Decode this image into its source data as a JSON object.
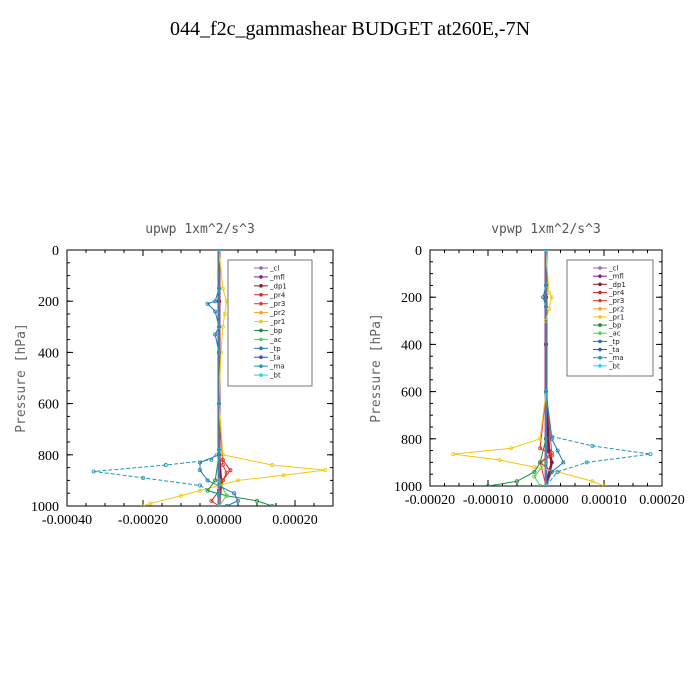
{
  "title": "044_f2c_gammashear  BUDGET at260E,-7N",
  "colors": {
    "_cl": "#9467bd",
    "_mfl": "#7b1fa2",
    "_dp1": "#8b1a3a",
    "_pr4": "#d62728",
    "_pr3": "#e8382b",
    "_pr2": "#ff9f1c",
    "_pr1": "#f2c80f",
    "_bp": "#1a8f3a",
    "_ac": "#4dd34d",
    "_tp": "#1f77b4",
    "_ta": "#3f51b5",
    "_ma": "#2096b8",
    "_bt": "#22d3ee"
  },
  "chart_data": [
    {
      "type": "line",
      "title": "upwp  1xm^2/s^3",
      "ylabel": "Pressure [hPa]",
      "xlim": [
        -0.0004,
        0.0003
      ],
      "ylim": [
        1000,
        0
      ],
      "xticks": [
        "-0.00040",
        "-0.00020",
        "0.00000",
        "0.00020"
      ],
      "yticks": [
        "0",
        "200",
        "400",
        "600",
        "800",
        "1000"
      ],
      "legend_position": "top-right",
      "series": [
        {
          "name": "_cl",
          "points": [
            [
              0,
              0
            ],
            [
              0,
              200
            ],
            [
              0,
              400
            ],
            [
              0,
              600
            ],
            [
              0,
              800
            ],
            [
              0,
              1000
            ]
          ]
        },
        {
          "name": "_mfl",
          "points": [
            [
              0,
              0
            ],
            [
              0,
              200
            ],
            [
              0,
              400
            ],
            [
              0,
              600
            ],
            [
              0,
              800
            ],
            [
              0,
              1000
            ]
          ]
        },
        {
          "name": "_dp1",
          "points": [
            [
              0,
              0
            ],
            [
              0,
              200
            ],
            [
              0,
              400
            ],
            [
              0,
              600
            ],
            [
              0,
              800
            ],
            [
              5e-06,
              900
            ],
            [
              0,
              1000
            ]
          ]
        },
        {
          "name": "_pr4",
          "points": [
            [
              0,
              0
            ],
            [
              0,
              600
            ],
            [
              1e-05,
              820
            ],
            [
              3e-05,
              860
            ],
            [
              1e-05,
              900
            ],
            [
              0,
              940
            ],
            [
              -2e-05,
              980
            ],
            [
              0,
              1000
            ]
          ]
        },
        {
          "name": "_pr3",
          "points": [
            [
              0,
              0
            ],
            [
              0,
              600
            ],
            [
              1e-05,
              840
            ],
            [
              2e-05,
              870
            ],
            [
              1e-05,
              900
            ],
            [
              0,
              1000
            ]
          ]
        },
        {
          "name": "_pr2",
          "points": [
            [
              0,
              0
            ],
            [
              0,
              600
            ],
            [
              0,
              800
            ],
            [
              0,
              1000
            ]
          ]
        },
        {
          "name": "_pr1",
          "points": [
            [
              0,
              0
            ],
            [
              1e-05,
              150
            ],
            [
              2e-05,
              200
            ],
            [
              1.5e-05,
              250
            ],
            [
              1e-05,
              300
            ],
            [
              5e-06,
              400
            ],
            [
              0,
              600
            ],
            [
              1e-05,
              800
            ],
            [
              0.00014,
              840
            ],
            [
              0.00028,
              860
            ],
            [
              0.00017,
              880
            ],
            [
              5e-05,
              900
            ],
            [
              -5e-05,
              940
            ],
            [
              -0.0001,
              960
            ],
            [
              -0.00018,
              990
            ],
            [
              -0.0002,
              1000
            ]
          ]
        },
        {
          "name": "_bp",
          "points": [
            [
              0,
              0
            ],
            [
              0,
              800
            ],
            [
              -1e-05,
              900
            ],
            [
              -3e-05,
              940
            ],
            [
              2e-05,
              960
            ],
            [
              0.0001,
              980
            ],
            [
              0.00014,
              1000
            ]
          ]
        },
        {
          "name": "_ac",
          "points": [
            [
              0,
              0
            ],
            [
              0,
              800
            ],
            [
              0,
              900
            ],
            [
              2e-05,
              960
            ],
            [
              0,
              1000
            ]
          ]
        },
        {
          "name": "_tp",
          "points": [
            [
              0,
              0
            ],
            [
              0,
              150
            ],
            [
              -1e-05,
              200
            ],
            [
              -3e-05,
              210
            ],
            [
              -1e-05,
              240
            ],
            [
              0,
              300
            ],
            [
              -1e-05,
              330
            ],
            [
              0,
              400
            ],
            [
              0,
              600
            ],
            [
              0,
              800
            ],
            [
              -5e-05,
              830
            ],
            [
              -5e-05,
              860
            ],
            [
              -3e-05,
              900
            ],
            [
              4e-05,
              950
            ],
            [
              5e-05,
              980
            ],
            [
              2e-05,
              1000
            ]
          ]
        },
        {
          "name": "_ta",
          "points": [
            [
              0,
              0
            ],
            [
              0,
              800
            ],
            [
              0,
              1000
            ]
          ]
        },
        {
          "name": "_ma",
          "points": [
            [
              0,
              0
            ],
            [
              0,
              600
            ],
            [
              0,
              780
            ],
            [
              -2e-05,
              820
            ],
            [
              -0.00014,
              840
            ],
            [
              -0.00033,
              865
            ],
            [
              -0.0002,
              890
            ],
            [
              -5e-05,
              920
            ],
            [
              0,
              960
            ],
            [
              0,
              1000
            ]
          ]
        },
        {
          "name": "_bt",
          "points": [
            [
              0,
              0
            ],
            [
              0,
              1000
            ]
          ]
        }
      ]
    },
    {
      "type": "line",
      "title": "vpwp  1xm^2/s^3",
      "ylabel": "Pressure [hPa]",
      "xlim": [
        -0.0002,
        0.0002
      ],
      "ylim": [
        1000,
        0
      ],
      "xticks": [
        "-0.00020",
        "-0.00010",
        "0.00000",
        "0.00010",
        "0.00020"
      ],
      "yticks": [
        "0",
        "200",
        "400",
        "600",
        "800",
        "1000"
      ],
      "legend_position": "top-right",
      "series": [
        {
          "name": "_cl",
          "points": [
            [
              0,
              0
            ],
            [
              0,
              200
            ],
            [
              0,
              400
            ],
            [
              0,
              600
            ],
            [
              0,
              800
            ],
            [
              0,
              1000
            ]
          ]
        },
        {
          "name": "_mfl",
          "points": [
            [
              0,
              0
            ],
            [
              0,
              200
            ],
            [
              0,
              400
            ],
            [
              0,
              600
            ],
            [
              0,
              800
            ],
            [
              0,
              1000
            ]
          ]
        },
        {
          "name": "_dp1",
          "points": [
            [
              0,
              0
            ],
            [
              0,
              600
            ],
            [
              5e-06,
              850
            ],
            [
              1e-05,
              900
            ],
            [
              0,
              1000
            ]
          ]
        },
        {
          "name": "_pr4",
          "points": [
            [
              0,
              0
            ],
            [
              0,
              600
            ],
            [
              -1e-05,
              840
            ],
            [
              1e-05,
              870
            ],
            [
              -1e-05,
              900
            ],
            [
              1e-05,
              940
            ],
            [
              0,
              1000
            ]
          ]
        },
        {
          "name": "_pr3",
          "points": [
            [
              0,
              0
            ],
            [
              0,
              600
            ],
            [
              1e-05,
              860
            ],
            [
              -1e-05,
              900
            ],
            [
              0,
              1000
            ]
          ]
        },
        {
          "name": "_pr2",
          "points": [
            [
              0,
              0
            ],
            [
              0,
              1000
            ]
          ]
        },
        {
          "name": "_pr1",
          "points": [
            [
              0,
              0
            ],
            [
              5e-06,
              180
            ],
            [
              1e-05,
              200
            ],
            [
              5e-06,
              250
            ],
            [
              0,
              300
            ],
            [
              0,
              600
            ],
            [
              -1e-05,
              800
            ],
            [
              -6e-05,
              840
            ],
            [
              -0.00016,
              865
            ],
            [
              -8e-05,
              890
            ],
            [
              -2e-05,
              920
            ],
            [
              2e-05,
              940
            ],
            [
              8e-05,
              980
            ],
            [
              0.0001,
              1000
            ]
          ]
        },
        {
          "name": "_bp",
          "points": [
            [
              0,
              0
            ],
            [
              0,
              800
            ],
            [
              -1e-05,
              900
            ],
            [
              -2e-05,
              940
            ],
            [
              -5e-05,
              980
            ],
            [
              -0.0001,
              1000
            ]
          ]
        },
        {
          "name": "_ac",
          "points": [
            [
              0,
              0
            ],
            [
              0,
              900
            ],
            [
              -2e-05,
              960
            ],
            [
              -1e-05,
              1000
            ]
          ]
        },
        {
          "name": "_tp",
          "points": [
            [
              0,
              0
            ],
            [
              0,
              150
            ],
            [
              -5e-06,
              200
            ],
            [
              0,
              240
            ],
            [
              0,
              600
            ],
            [
              1e-05,
              800
            ],
            [
              2e-05,
              850
            ],
            [
              3e-05,
              900
            ],
            [
              1e-05,
              940
            ],
            [
              0,
              1000
            ]
          ]
        },
        {
          "name": "_ta",
          "points": [
            [
              0,
              0
            ],
            [
              0,
              1000
            ]
          ]
        },
        {
          "name": "_ma",
          "points": [
            [
              0,
              0
            ],
            [
              0,
              600
            ],
            [
              1e-05,
              790
            ],
            [
              8e-05,
              830
            ],
            [
              0.00018,
              865
            ],
            [
              7e-05,
              900
            ],
            [
              2e-05,
              940
            ],
            [
              0,
              1000
            ]
          ]
        },
        {
          "name": "_bt",
          "points": [
            [
              0,
              0
            ],
            [
              0,
              1000
            ]
          ]
        }
      ]
    }
  ]
}
